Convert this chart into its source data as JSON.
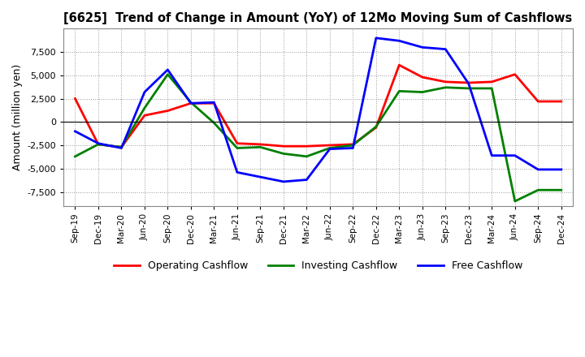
{
  "title": "[6625]  Trend of Change in Amount (YoY) of 12Mo Moving Sum of Cashflows",
  "ylabel": "Amount (million yen)",
  "x_labels": [
    "Sep-19",
    "Dec-19",
    "Mar-20",
    "Jun-20",
    "Sep-20",
    "Dec-20",
    "Mar-21",
    "Jun-21",
    "Sep-21",
    "Dec-21",
    "Mar-22",
    "Jun-22",
    "Sep-22",
    "Dec-22",
    "Mar-23",
    "Jun-23",
    "Sep-23",
    "Dec-23",
    "Mar-24",
    "Jun-24",
    "Sep-24",
    "Dec-24"
  ],
  "operating": [
    2500,
    -2400,
    -2700,
    700,
    1200,
    2000,
    2000,
    -2300,
    -2400,
    -2600,
    -2600,
    -2500,
    -2400,
    -600,
    6100,
    4800,
    4300,
    4200,
    4300,
    5100,
    2200,
    2200
  ],
  "investing": [
    -3700,
    -2400,
    -2700,
    1500,
    5100,
    2100,
    -100,
    -2800,
    -2700,
    -3400,
    -3700,
    -2800,
    -2500,
    -500,
    3300,
    3200,
    3700,
    3600,
    3600,
    -8500,
    -7300,
    -7300
  ],
  "free": [
    -1000,
    -2300,
    -2800,
    3200,
    5600,
    2000,
    2100,
    -5400,
    -5900,
    -6400,
    -6200,
    -2900,
    -2800,
    9000,
    8700,
    8000,
    7800,
    4100,
    -3600,
    -3600,
    -5100,
    -5100
  ],
  "operating_color": "#ff0000",
  "investing_color": "#008000",
  "free_color": "#0000ff",
  "ylim": [
    -9000,
    10000
  ],
  "yticks": [
    -7500,
    -5000,
    -2500,
    0,
    2500,
    5000,
    7500
  ],
  "background_color": "#ffffff",
  "plot_bg_color": "#ffffff",
  "grid_color": "#999999"
}
